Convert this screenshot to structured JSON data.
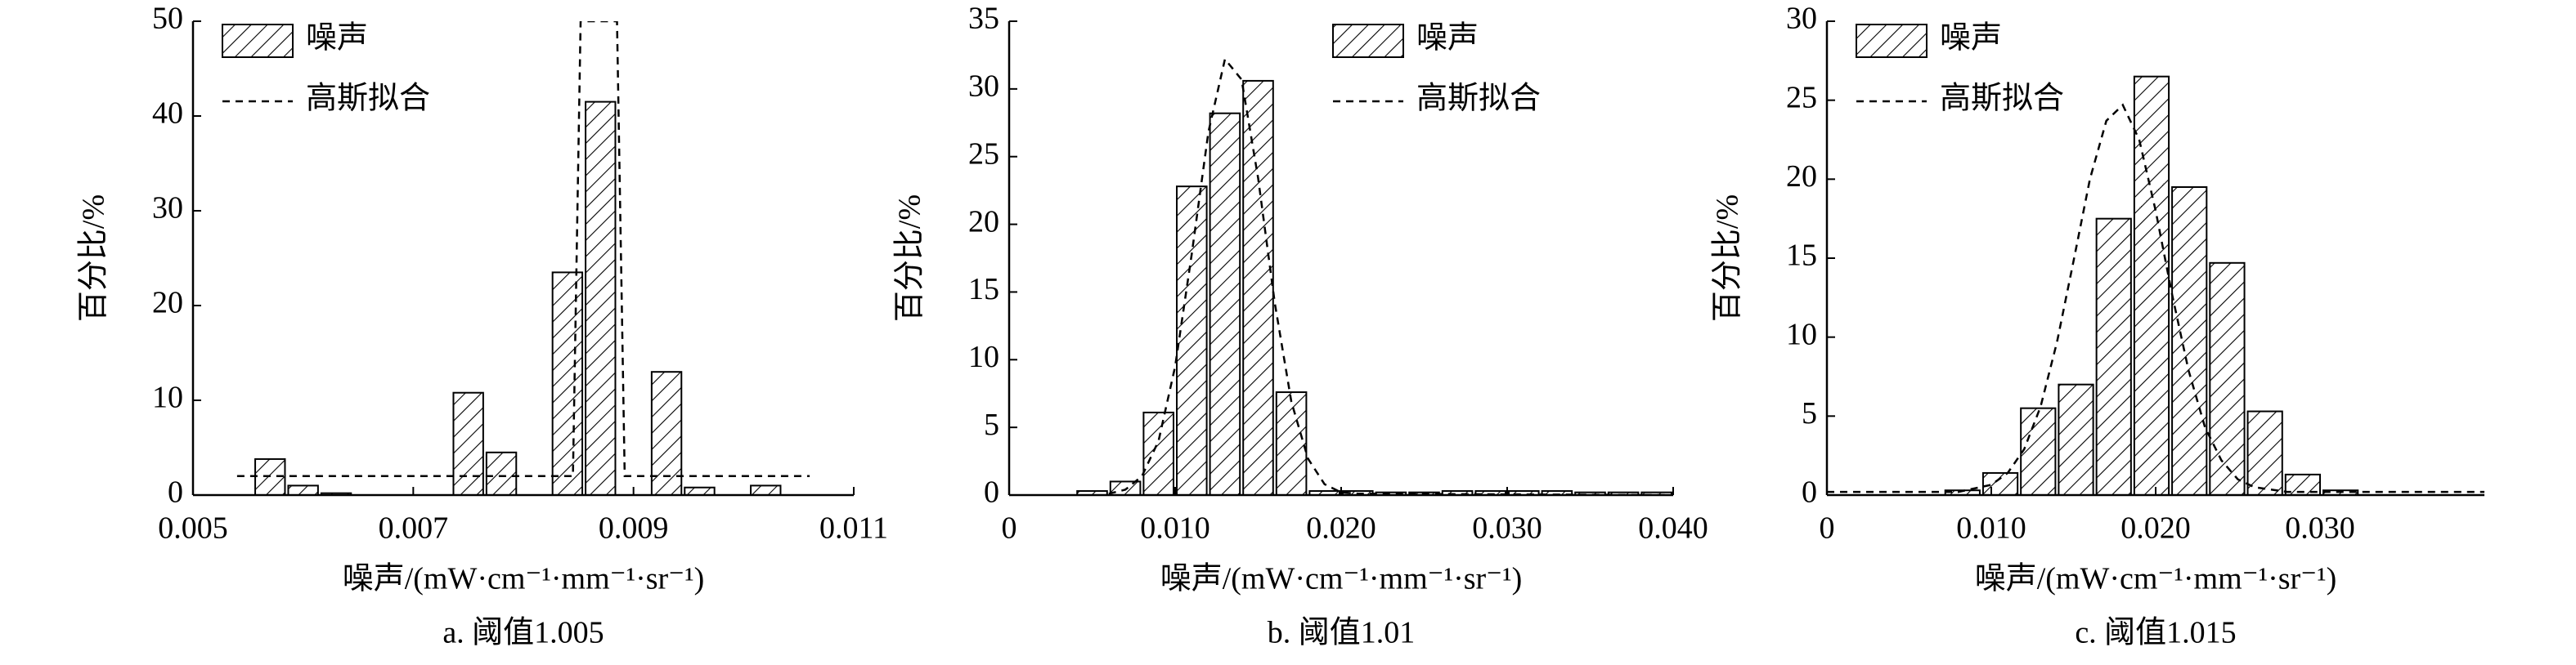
{
  "chart_data": [
    {
      "type": "histogram",
      "title": "a. 阈值1.005",
      "xlabel": "噪声/(mW·cm⁻¹·mm⁻¹·sr⁻¹)",
      "ylabel": "百分比/%",
      "bins": [
        0.00555,
        0.00585,
        0.00615,
        0.00645,
        0.00675,
        0.00705,
        0.00735,
        0.00765,
        0.00795,
        0.00825,
        0.00855,
        0.00885,
        0.00915,
        0.00945,
        0.00975,
        0.01005,
        0.01035
      ],
      "series": [
        {
          "name": "噪声",
          "color": "#000000",
          "values": [
            3.8,
            1.0,
            0.2,
            0,
            0,
            0,
            10.8,
            4.5,
            0,
            23.5,
            41.5,
            0,
            13,
            0.8,
            0,
            1.0
          ]
        }
      ],
      "fit": {
        "name": "高斯拟合",
        "color": "#000000",
        "x": [
          0.0054,
          0.00845,
          0.00852,
          0.00885,
          0.00892,
          0.0106
        ],
        "y": [
          2,
          2,
          50,
          50,
          2,
          2
        ]
      },
      "xlim": [
        0.005,
        0.011
      ],
      "ylim": [
        0,
        50
      ],
      "xticks": [
        0.005,
        0.007,
        0.009,
        0.011
      ],
      "yticks": [
        0,
        10,
        20,
        30,
        40,
        50
      ],
      "legend": "upper left"
    },
    {
      "type": "histogram",
      "title": "b. 阈值1.01",
      "xlabel": "噪声/(mW·cm⁻¹·mm⁻¹·sr⁻¹)",
      "ylabel": "百分比/%",
      "bins": [
        0.004,
        0.006,
        0.008,
        0.01,
        0.012,
        0.014,
        0.016,
        0.018,
        0.02,
        0.022,
        0.024,
        0.026,
        0.028,
        0.03,
        0.032,
        0.034,
        0.036,
        0.038,
        0.04
      ],
      "series": [
        {
          "name": "噪声",
          "color": "#000000",
          "values": [
            0.3,
            1.0,
            6.1,
            22.8,
            28.2,
            30.6,
            7.6,
            0.3,
            0.3,
            0.2,
            0.2,
            0.3,
            0.3,
            0.3,
            0.3,
            0.2,
            0.2,
            0.2
          ]
        }
      ],
      "fit": {
        "name": "高斯拟合",
        "color": "#000000",
        "x": [
          0.006,
          0.007,
          0.008,
          0.009,
          0.01,
          0.011,
          0.012,
          0.013,
          0.014,
          0.015,
          0.016,
          0.017,
          0.018,
          0.019,
          0.02,
          0.021,
          0.04
        ],
        "y": [
          0.1,
          0.4,
          1.4,
          4.0,
          9.5,
          17.8,
          26.8,
          32.2,
          30.7,
          23.4,
          14.2,
          6.9,
          2.7,
          0.8,
          0.2,
          0.1,
          0
        ]
      },
      "xlim": [
        0,
        0.04
      ],
      "ylim": [
        0,
        35
      ],
      "xticks": [
        0,
        {
          "value": 0.01,
          "label": "0.010"
        },
        {
          "value": 0.02,
          "label": "0.020"
        },
        {
          "value": 0.03,
          "label": "0.030"
        },
        {
          "value": 0.04,
          "label": "0.040"
        }
      ],
      "yticks": [
        0,
        5,
        10,
        15,
        20,
        25,
        30,
        35
      ],
      "legend": "upper center"
    },
    {
      "type": "histogram",
      "title": "c. 阈值1.015",
      "xlabel": "噪声/(mW·cm⁻¹·mm⁻¹·sr⁻¹)",
      "ylabel": "百分比/%",
      "bins": [
        0.0071,
        0.0094,
        0.0117,
        0.014,
        0.0163,
        0.0186,
        0.0209,
        0.0232,
        0.0255,
        0.0278,
        0.0301,
        0.0324
      ],
      "series": [
        {
          "name": "噪声",
          "color": "#000000",
          "values": [
            0.3,
            1.4,
            5.5,
            7.0,
            17.5,
            26.5,
            19.5,
            14.7,
            5.3,
            1.3,
            0.3
          ]
        }
      ],
      "fit": {
        "name": "高斯拟合",
        "color": "#000000",
        "x": [
          0,
          0.008,
          0.01,
          0.011,
          0.012,
          0.013,
          0.014,
          0.015,
          0.016,
          0.017,
          0.018,
          0.019,
          0.02,
          0.021,
          0.022,
          0.023,
          0.024,
          0.025,
          0.026,
          0.028,
          0.04
        ],
        "y": [
          0.2,
          0.2,
          0.65,
          1.4,
          2.9,
          5.6,
          9.7,
          14.8,
          20.0,
          23.7,
          24.7,
          22.5,
          18.0,
          12.7,
          7.9,
          4.3,
          2.2,
          1.0,
          0.5,
          0.2,
          0.2
        ]
      },
      "xlim": [
        0,
        0.04
      ],
      "ylim": [
        0,
        30
      ],
      "xticks": [
        0,
        {
          "value": 0.01,
          "label": "0.010"
        },
        {
          "value": 0.02,
          "label": "0.020"
        },
        {
          "value": 0.03,
          "label": "0.030"
        }
      ],
      "yticks": [
        0,
        5,
        10,
        15,
        20,
        25,
        30
      ],
      "legend": "upper left"
    }
  ]
}
